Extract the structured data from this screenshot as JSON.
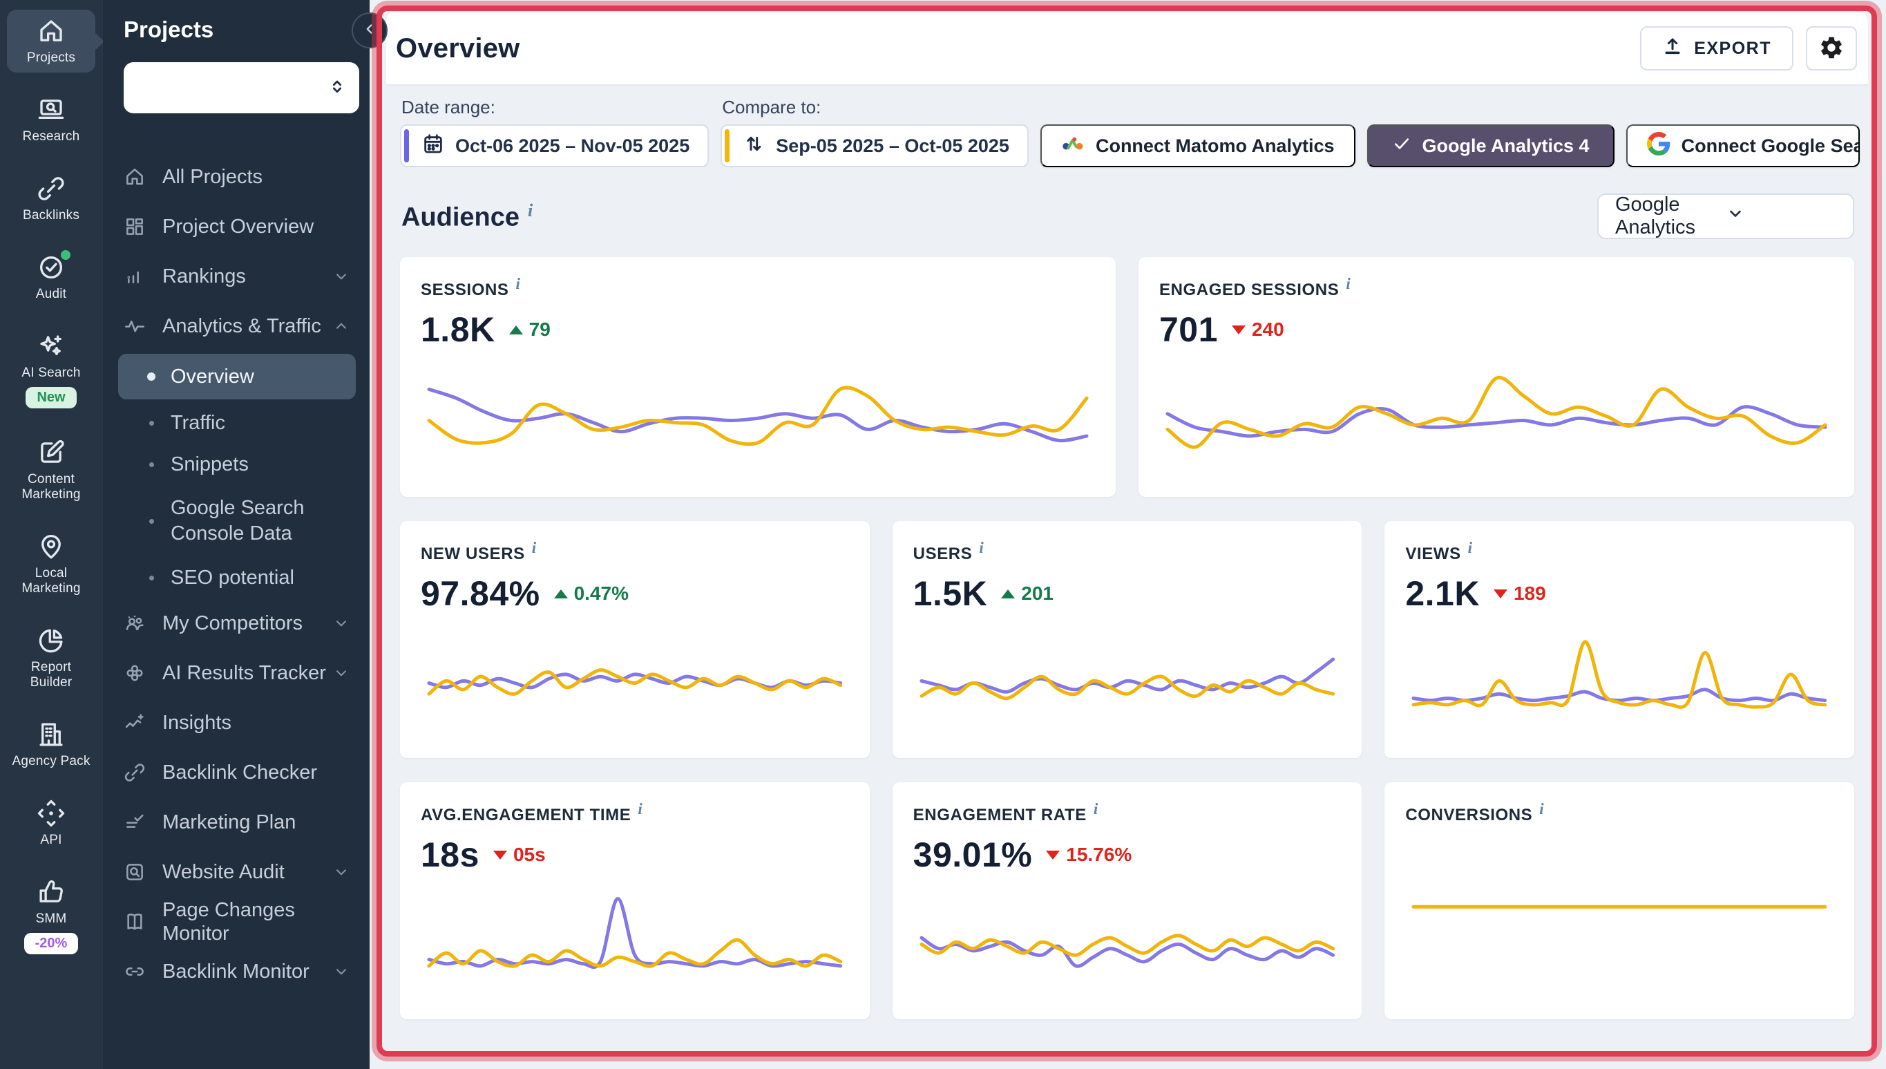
{
  "colors": {
    "chart_yellow": "#F0B40A",
    "chart_purple": "#8477E6",
    "positive_green": "#157B4A",
    "negative_red": "#DF241B",
    "annotation_red": "#DF3B51",
    "ga4_button_bg": "#574F6C",
    "date_accent_purple": "#6B63E8",
    "compare_accent_yellow": "#F2B70A"
  },
  "rail": {
    "items": [
      {
        "id": "projects",
        "label": "Projects",
        "icon": "projects-home-icon",
        "active": true
      },
      {
        "id": "research",
        "label": "Research",
        "icon": "research-icon"
      },
      {
        "id": "backlinks",
        "label": "Backlinks",
        "icon": "backlinks-icon"
      },
      {
        "id": "audit",
        "label": "Audit",
        "icon": "audit-icon",
        "dot": true
      },
      {
        "id": "ai-search",
        "label": "AI Search",
        "icon": "ai-search-icon",
        "badge": {
          "text": "New",
          "style": "green"
        }
      },
      {
        "id": "content-marketing",
        "label": "Content Marketing",
        "icon": "content-marketing-icon"
      },
      {
        "id": "local-marketing",
        "label": "Local Marketing",
        "icon": "local-marketing-icon"
      },
      {
        "id": "report-builder",
        "label": "Report Builder",
        "icon": "report-builder-icon"
      },
      {
        "id": "agency-pack",
        "label": "Agency Pack",
        "icon": "agency-pack-icon"
      },
      {
        "id": "api",
        "label": "API",
        "icon": "api-icon"
      },
      {
        "id": "smm",
        "label": "SMM",
        "icon": "smm-icon",
        "badge": {
          "text": "-20%",
          "style": "purple"
        }
      }
    ]
  },
  "panel": {
    "title": "Projects",
    "select_value": "",
    "items": [
      {
        "id": "all-projects",
        "label": "All Projects",
        "icon": "home-icon"
      },
      {
        "id": "project-overview",
        "label": "Project Overview",
        "icon": "grid-icon"
      },
      {
        "id": "rankings",
        "label": "Rankings",
        "icon": "rankings-icon",
        "chevron": "down"
      },
      {
        "id": "analytics-traffic",
        "label": "Analytics & Traffic",
        "icon": "activity-icon",
        "chevron": "up"
      },
      {
        "id": "overview",
        "label": "Overview",
        "sub": true,
        "active": true
      },
      {
        "id": "traffic",
        "label": "Traffic",
        "sub": true
      },
      {
        "id": "snippets",
        "label": "Snippets",
        "sub": true
      },
      {
        "id": "gsc-data",
        "label": "Google Search Console Data",
        "sub": true,
        "tall": true
      },
      {
        "id": "seo-potential",
        "label": "SEO potential",
        "sub": true
      },
      {
        "id": "my-competitors",
        "label": "My Competitors",
        "icon": "competitors-icon",
        "chevron": "down"
      },
      {
        "id": "ai-results-tracker",
        "label": "AI Results Tracker",
        "icon": "ai-tracker-icon",
        "chevron": "down"
      },
      {
        "id": "insights",
        "label": "Insights",
        "icon": "insights-icon"
      },
      {
        "id": "backlink-checker",
        "label": "Backlink Checker",
        "icon": "link-icon"
      },
      {
        "id": "marketing-plan",
        "label": "Marketing Plan",
        "icon": "plan-icon"
      },
      {
        "id": "website-audit",
        "label": "Website Audit",
        "icon": "site-audit-icon",
        "chevron": "down"
      },
      {
        "id": "page-changes-monitor",
        "label": "Page Changes Monitor",
        "icon": "pages-icon"
      },
      {
        "id": "backlink-monitor",
        "label": "Backlink Monitor",
        "icon": "link2-icon",
        "chevron": "down"
      }
    ]
  },
  "header": {
    "title": "Overview",
    "export_label": "EXPORT"
  },
  "filters": {
    "date_range_label": "Date range:",
    "date_range_value": "Oct-06 2025 – Nov-05 2025",
    "compare_label": "Compare to:",
    "compare_value": "Sep-05 2025 – Oct-05 2025",
    "connect_matomo": "Connect Matomo Analytics",
    "ga4": "Google Analytics 4",
    "connect_gsc": "Connect Google Search Console"
  },
  "audience": {
    "title": "Audience",
    "source_select": "Google Analytics"
  },
  "cards": [
    {
      "id": "sessions",
      "label": "SESSIONS",
      "value": "1.8K",
      "delta": "79",
      "direction": "up",
      "wide": true,
      "series": {
        "purple": [
          0.78,
          0.7,
          0.58,
          0.5,
          0.52,
          0.56,
          0.48,
          0.4,
          0.47,
          0.52,
          0.52,
          0.5,
          0.52,
          0.56,
          0.52,
          0.55,
          0.42,
          0.5,
          0.44,
          0.4,
          0.42,
          0.47,
          0.4,
          0.32,
          0.36
        ],
        "yellow": [
          0.5,
          0.33,
          0.3,
          0.38,
          0.64,
          0.56,
          0.42,
          0.44,
          0.5,
          0.48,
          0.46,
          0.32,
          0.3,
          0.48,
          0.46,
          0.78,
          0.72,
          0.5,
          0.42,
          0.44,
          0.4,
          0.37,
          0.45,
          0.42,
          0.7
        ]
      }
    },
    {
      "id": "engaged-sessions",
      "label": "ENGAGED SESSIONS",
      "value": "701",
      "delta": "240",
      "direction": "down",
      "wide": true,
      "series": {
        "purple": [
          0.56,
          0.44,
          0.4,
          0.36,
          0.4,
          0.42,
          0.4,
          0.56,
          0.6,
          0.46,
          0.44,
          0.46,
          0.48,
          0.5,
          0.46,
          0.52,
          0.48,
          0.46,
          0.5,
          0.52,
          0.46,
          0.62,
          0.56,
          0.46,
          0.44
        ],
        "yellow": [
          0.42,
          0.26,
          0.48,
          0.42,
          0.36,
          0.47,
          0.44,
          0.62,
          0.56,
          0.46,
          0.52,
          0.5,
          0.88,
          0.72,
          0.56,
          0.62,
          0.54,
          0.46,
          0.78,
          0.62,
          0.52,
          0.54,
          0.36,
          0.3,
          0.46
        ]
      }
    },
    {
      "id": "new-users",
      "label": "NEW USERS",
      "value": "97.84%",
      "delta": "0.47%",
      "direction": "up",
      "series": {
        "purple": [
          0.5,
          0.46,
          0.52,
          0.48,
          0.54,
          0.5,
          0.46,
          0.54,
          0.58,
          0.52,
          0.56,
          0.52,
          0.58,
          0.54,
          0.5,
          0.56,
          0.52,
          0.48,
          0.54,
          0.5,
          0.46,
          0.52,
          0.48,
          0.52,
          0.5
        ],
        "yellow": [
          0.4,
          0.52,
          0.44,
          0.56,
          0.46,
          0.4,
          0.52,
          0.6,
          0.46,
          0.54,
          0.62,
          0.56,
          0.5,
          0.58,
          0.52,
          0.46,
          0.54,
          0.48,
          0.56,
          0.5,
          0.44,
          0.52,
          0.46,
          0.54,
          0.48
        ]
      }
    },
    {
      "id": "users",
      "label": "USERS",
      "value": "1.5K",
      "delta": "201",
      "direction": "up",
      "series": {
        "purple": [
          0.52,
          0.48,
          0.44,
          0.5,
          0.46,
          0.42,
          0.5,
          0.54,
          0.48,
          0.44,
          0.5,
          0.46,
          0.52,
          0.48,
          0.44,
          0.52,
          0.48,
          0.44,
          0.5,
          0.46,
          0.5,
          0.56,
          0.5,
          0.6,
          0.72
        ],
        "yellow": [
          0.38,
          0.46,
          0.4,
          0.5,
          0.42,
          0.36,
          0.46,
          0.56,
          0.44,
          0.4,
          0.52,
          0.46,
          0.4,
          0.5,
          0.56,
          0.44,
          0.38,
          0.48,
          0.42,
          0.52,
          0.46,
          0.4,
          0.5,
          0.44,
          0.4
        ]
      }
    },
    {
      "id": "views",
      "label": "VIEWS",
      "value": "2.1K",
      "delta": "189",
      "direction": "down",
      "series": {
        "purple": [
          0.36,
          0.34,
          0.36,
          0.34,
          0.36,
          0.4,
          0.36,
          0.34,
          0.36,
          0.38,
          0.42,
          0.36,
          0.34,
          0.36,
          0.34,
          0.36,
          0.38,
          0.44,
          0.36,
          0.34,
          0.36,
          0.34,
          0.4,
          0.36,
          0.34
        ],
        "yellow": [
          0.3,
          0.32,
          0.3,
          0.34,
          0.3,
          0.52,
          0.34,
          0.3,
          0.32,
          0.34,
          0.88,
          0.42,
          0.32,
          0.3,
          0.34,
          0.3,
          0.32,
          0.78,
          0.36,
          0.3,
          0.28,
          0.32,
          0.58,
          0.34,
          0.3
        ]
      }
    },
    {
      "id": "avg-engagement-time",
      "label": "AVG.ENGAGEMENT TIME",
      "value": "18s",
      "delta": "05s",
      "direction": "down",
      "series": {
        "purple": [
          0.36,
          0.32,
          0.34,
          0.3,
          0.36,
          0.32,
          0.34,
          0.32,
          0.36,
          0.32,
          0.34,
          0.92,
          0.4,
          0.32,
          0.34,
          0.32,
          0.3,
          0.34,
          0.32,
          0.36,
          0.3,
          0.32,
          0.34,
          0.32,
          0.3
        ],
        "yellow": [
          0.3,
          0.42,
          0.32,
          0.44,
          0.34,
          0.3,
          0.4,
          0.34,
          0.44,
          0.36,
          0.3,
          0.38,
          0.34,
          0.3,
          0.42,
          0.36,
          0.32,
          0.44,
          0.54,
          0.4,
          0.32,
          0.36,
          0.3,
          0.4,
          0.34
        ]
      }
    },
    {
      "id": "engagement-rate",
      "label": "ENGAGEMENT RATE",
      "value": "39.01%",
      "delta": "15.76%",
      "direction": "down",
      "series": {
        "purple": [
          0.56,
          0.46,
          0.5,
          0.44,
          0.48,
          0.52,
          0.44,
          0.4,
          0.48,
          0.3,
          0.38,
          0.46,
          0.4,
          0.34,
          0.44,
          0.5,
          0.42,
          0.36,
          0.46,
          0.4,
          0.36,
          0.44,
          0.38,
          0.46,
          0.4
        ],
        "yellow": [
          0.5,
          0.42,
          0.52,
          0.46,
          0.54,
          0.48,
          0.42,
          0.52,
          0.46,
          0.4,
          0.5,
          0.56,
          0.48,
          0.42,
          0.52,
          0.58,
          0.5,
          0.44,
          0.54,
          0.48,
          0.56,
          0.5,
          0.44,
          0.52,
          0.46
        ]
      }
    },
    {
      "id": "conversions",
      "label": "CONVERSIONS",
      "value": "",
      "delta": null,
      "direction": null,
      "series": {
        "purple": null,
        "yellow": [
          0.58,
          0.58,
          0.58,
          0.58,
          0.58,
          0.58,
          0.58,
          0.58,
          0.58,
          0.58,
          0.58,
          0.58,
          0.58,
          0.58,
          0.58,
          0.58,
          0.58,
          0.58,
          0.58,
          0.58,
          0.58,
          0.58,
          0.58,
          0.58,
          0.58
        ]
      }
    }
  ]
}
